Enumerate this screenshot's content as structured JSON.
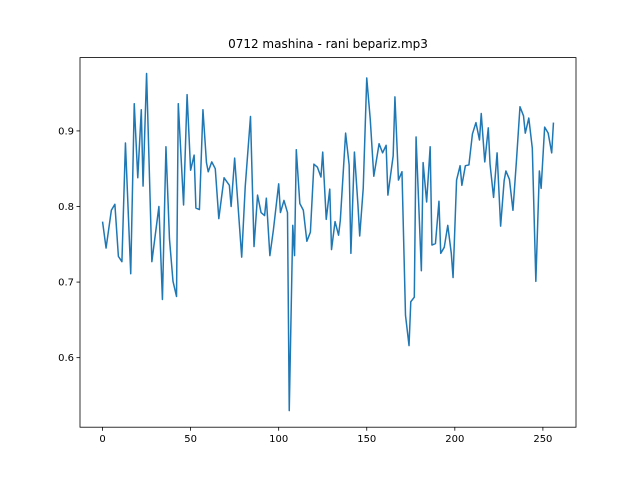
{
  "chart_data": {
    "type": "line",
    "title": "0712 mashina - rani bepariz.mp3",
    "x": [
      0,
      2,
      5,
      7,
      9,
      11,
      13,
      16,
      18,
      20,
      22,
      23,
      25,
      28,
      32,
      34,
      36,
      38,
      40,
      42,
      43,
      46,
      48,
      50,
      52,
      53,
      55,
      57,
      59,
      60,
      62,
      64,
      66,
      69,
      72,
      73,
      75,
      79,
      81,
      84,
      86,
      88,
      90,
      92,
      93,
      95,
      97,
      100,
      101,
      103,
      105,
      106,
      108,
      109,
      110,
      112,
      114,
      116,
      118,
      120,
      122,
      124,
      125,
      127,
      129,
      130,
      132,
      134,
      135,
      138,
      140,
      141,
      143,
      145,
      146,
      148,
      150,
      152,
      154,
      155,
      157,
      159,
      161,
      162,
      165,
      166,
      168,
      170,
      172,
      174,
      175,
      177,
      178,
      181,
      182,
      184,
      186,
      187,
      189,
      191,
      192,
      194,
      196,
      198,
      199,
      201,
      203,
      204,
      206,
      208,
      210,
      212,
      214,
      215,
      217,
      219,
      220,
      222,
      224,
      226,
      228,
      229,
      231,
      233,
      235,
      237,
      239,
      240,
      242,
      244,
      246,
      248,
      249,
      251,
      253,
      255,
      256
    ],
    "series": [
      {
        "color": "#1f77b4",
        "values": [
          0.78,
          0.745,
          0.795,
          0.803,
          0.734,
          0.727,
          0.884,
          0.711,
          0.936,
          0.838,
          0.928,
          0.827,
          0.976,
          0.727,
          0.8,
          0.677,
          0.879,
          0.757,
          0.701,
          0.681,
          0.936,
          0.802,
          0.948,
          0.848,
          0.868,
          0.798,
          0.796,
          0.928,
          0.858,
          0.846,
          0.859,
          0.85,
          0.784,
          0.838,
          0.828,
          0.8,
          0.864,
          0.733,
          0.826,
          0.919,
          0.747,
          0.815,
          0.792,
          0.788,
          0.811,
          0.735,
          0.769,
          0.83,
          0.792,
          0.808,
          0.792,
          0.53,
          0.775,
          0.735,
          0.875,
          0.804,
          0.795,
          0.754,
          0.766,
          0.856,
          0.852,
          0.839,
          0.872,
          0.783,
          0.823,
          0.743,
          0.78,
          0.762,
          0.782,
          0.897,
          0.855,
          0.738,
          0.872,
          0.802,
          0.761,
          0.824,
          0.97,
          0.915,
          0.84,
          0.854,
          0.883,
          0.871,
          0.881,
          0.815,
          0.867,
          0.945,
          0.835,
          0.846,
          0.656,
          0.616,
          0.674,
          0.68,
          0.892,
          0.715,
          0.858,
          0.806,
          0.879,
          0.749,
          0.751,
          0.807,
          0.738,
          0.746,
          0.775,
          0.738,
          0.706,
          0.835,
          0.854,
          0.828,
          0.854,
          0.855,
          0.896,
          0.911,
          0.888,
          0.923,
          0.859,
          0.904,
          0.856,
          0.812,
          0.871,
          0.774,
          0.834,
          0.847,
          0.836,
          0.795,
          0.861,
          0.932,
          0.92,
          0.897,
          0.917,
          0.877,
          0.701,
          0.847,
          0.824,
          0.905,
          0.897,
          0.871,
          0.911
        ]
      }
    ],
    "xlim": [
      -12.8,
      268.8
    ],
    "xticks": [
      0,
      50,
      100,
      150,
      200,
      250
    ],
    "ylim": [
      0.508,
      0.997
    ],
    "yticks": [
      0.6,
      0.7,
      0.8,
      0.9
    ]
  }
}
